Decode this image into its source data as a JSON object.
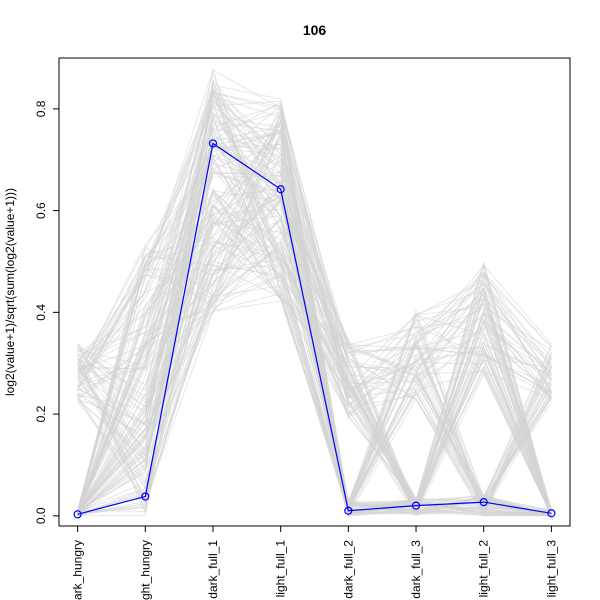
{
  "chart_data": {
    "type": "line",
    "title": "106",
    "xlabel": "",
    "ylabel": "log2(value+1)/sqrt(sum(log2(value+1)))",
    "categories": [
      "dark_hungry",
      "light_hungry",
      "dark_full_1",
      "light_full_1",
      "dark_full_2",
      "dark_full_3",
      "light_full_2",
      "light_full_3"
    ],
    "ylim": [
      -0.02,
      0.9
    ],
    "yticks": [
      0.0,
      0.2,
      0.4,
      0.6,
      0.8
    ],
    "ytick_labels": [
      "0.0",
      "0.2",
      "0.4",
      "0.6",
      "0.8"
    ],
    "grid": false,
    "series": [
      {
        "values": [
          0.003,
          0.038,
          0.732,
          0.642,
          0.01,
          0.02,
          0.027,
          0.005
        ],
        "color": "#0000ff",
        "highlighted": true
      }
    ],
    "background_profiles": {
      "color": "#d3d3d3",
      "approx_ranges": [
        [
          0.0,
          0.34
        ],
        [
          0.0,
          0.54
        ],
        [
          0.4,
          0.88
        ],
        [
          0.42,
          0.82
        ],
        [
          0.0,
          0.35
        ],
        [
          0.0,
          0.41
        ],
        [
          0.0,
          0.5
        ],
        [
          0.0,
          0.34
        ]
      ]
    }
  }
}
